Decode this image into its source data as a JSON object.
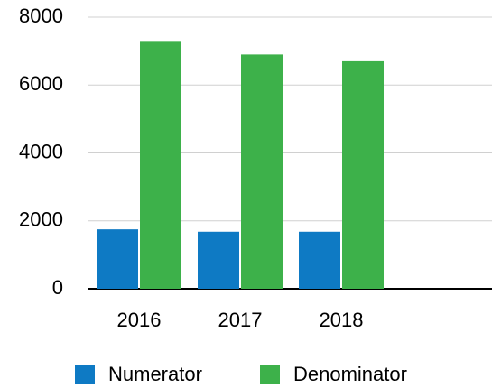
{
  "chart_data": {
    "type": "bar",
    "categories": [
      "2016",
      "2017",
      "2018",
      null
    ],
    "series": [
      {
        "name": "Numerator",
        "color": "#0e7ac4",
        "values": [
          1750,
          1680,
          1680,
          null
        ]
      },
      {
        "name": "Denominator",
        "color": "#3db14a",
        "values": [
          7300,
          6900,
          6700,
          null
        ]
      }
    ],
    "ylim": [
      0,
      8000
    ],
    "yticks": [
      0,
      2000,
      4000,
      6000,
      8000
    ],
    "grid": true,
    "legend": "bottom"
  }
}
